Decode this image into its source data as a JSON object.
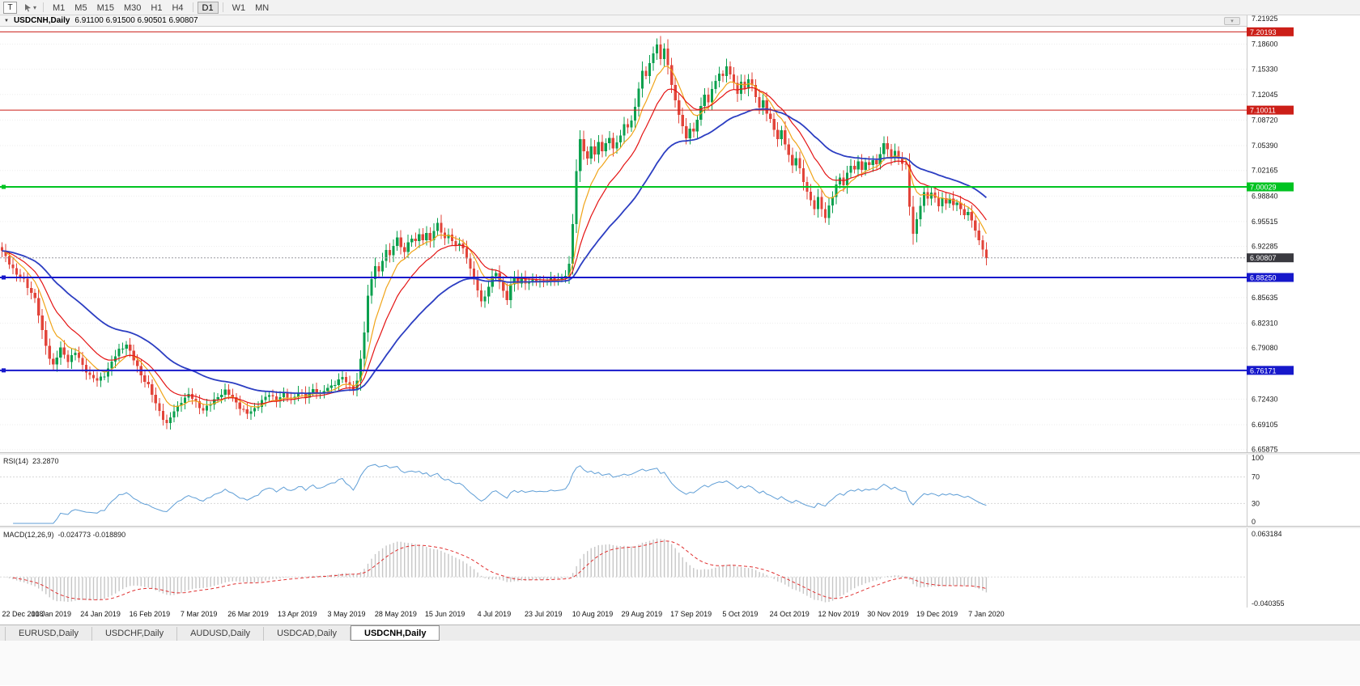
{
  "toolbar": {
    "tool_label": "T",
    "timeframes": [
      "M1",
      "M5",
      "M15",
      "M30",
      "H1",
      "H4",
      "D1",
      "W1",
      "MN"
    ],
    "active_timeframe": "D1"
  },
  "icons": {
    "caret_glyph": "▾",
    "scroll_glyph": "▾"
  },
  "header": {
    "collapse_glyph": "▼",
    "symbol": "USDCNH,Daily",
    "ohlc": "6.91100 6.91500 6.90501 6.90807"
  },
  "indicators": {
    "rsi_name": "RSI(14)",
    "rsi_value": "23.2870",
    "macd_name": "MACD(12,26,9)",
    "macd_values": "-0.024773 -0.018890"
  },
  "tabs": {
    "items": [
      "EURUSD,Daily",
      "USDCHF,Daily",
      "AUDUSD,Daily",
      "USDCAD,Daily",
      "USDCNH,Daily"
    ],
    "active_index": 4
  },
  "chart_data": {
    "type": "candlestick",
    "symbol": "USDCNH",
    "timeframe": "Daily",
    "current_bar": {
      "open": 6.911,
      "high": 6.915,
      "low": 6.90501,
      "close": 6.90807
    },
    "bars": 270,
    "bull_color": "#0aa04e",
    "bear_color": "#e2443a",
    "price_scale": {
      "top": 7.2233,
      "bottom": 6.6553,
      "ticks": [
        "7.21925",
        "7.18600",
        "7.15330",
        "7.12045",
        "7.08720",
        "7.05390",
        "7.02165",
        "6.98840",
        "6.95515",
        "6.92285",
        "6.85635",
        "6.82310",
        "6.79080",
        "6.72430",
        "6.69105",
        "6.65875"
      ]
    },
    "x_labels": [
      "22 Dec 2018",
      "10 Jan 2019",
      "24 Jan 2019",
      "16 Feb 2019",
      "7 Mar 2019",
      "26 Mar 2019",
      "13 Apr 2019",
      "3 May 2019",
      "28 May 2019",
      "15 Jun 2019",
      "4 Jul 2019",
      "23 Jul 2019",
      "10 Aug 2019",
      "29 Aug 2019",
      "17 Sep 2019",
      "5 Oct 2019",
      "24 Oct 2019",
      "12 Nov 2019",
      "30 Nov 2019",
      "19 Dec 2019",
      "7 Jan 2020"
    ],
    "horizontal_lines": [
      {
        "price": 7.20193,
        "label": "7.20193",
        "color": "#cc1f18",
        "width": 1,
        "handles": false
      },
      {
        "price": 7.10011,
        "label": "7.10011",
        "color": "#cc1f18",
        "width": 1,
        "handles": false
      },
      {
        "price": 7.00029,
        "label": "7.00029",
        "color": "#00c321",
        "width": 2,
        "handles": true
      },
      {
        "price": 6.8825,
        "label": "6.88250",
        "color": "#1618cb",
        "width": 2,
        "handles": true
      },
      {
        "price": 6.76171,
        "label": "6.76171",
        "color": "#1618cb",
        "width": 2,
        "handles": true
      }
    ],
    "last_price": {
      "price": 6.90807,
      "label": "6.90807",
      "badge_color": "#3a3a40",
      "line_color": "#9a9aa0"
    },
    "moving_averages": [
      {
        "method": "ema",
        "period": 8,
        "color": "#f0a418",
        "width": 1.2
      },
      {
        "method": "ema",
        "period": 16,
        "color": "#e41414",
        "width": 1.2
      },
      {
        "method": "ema",
        "period": 40,
        "color": "#2c3ec2",
        "width": 1.8
      }
    ],
    "indicators": {
      "rsi": {
        "period": 14,
        "current": 23.287,
        "color": "#5f9ed6",
        "ticks": [
          "100",
          "70",
          "30",
          "0"
        ],
        "guides": [
          70,
          30
        ]
      },
      "macd": {
        "fast": 12,
        "slow": 26,
        "signal_period": 9,
        "current_macd": -0.024773,
        "current_signal": -0.01889,
        "scale_top": 0.063184,
        "scale_bottom": -0.040355,
        "ticks": [
          "0.063184",
          "-0.040355"
        ],
        "histogram_color": "#c6c6c6",
        "signal_color": "#e03030"
      }
    },
    "close_path": [
      [
        0,
        6.916
      ],
      [
        2,
        6.902
      ],
      [
        4,
        6.886
      ],
      [
        6,
        6.879
      ],
      [
        9,
        6.855
      ],
      [
        11,
        6.812
      ],
      [
        13,
        6.778
      ],
      [
        14,
        6.768
      ],
      [
        16,
        6.79
      ],
      [
        18,
        6.775
      ],
      [
        20,
        6.785
      ],
      [
        22,
        6.768
      ],
      [
        24,
        6.755
      ],
      [
        26,
        6.748
      ],
      [
        28,
        6.756
      ],
      [
        30,
        6.772
      ],
      [
        32,
        6.788
      ],
      [
        34,
        6.796
      ],
      [
        36,
        6.775
      ],
      [
        38,
        6.756
      ],
      [
        40,
        6.742
      ],
      [
        42,
        6.718
      ],
      [
        44,
        6.7
      ],
      [
        45,
        6.692
      ],
      [
        47,
        6.708
      ],
      [
        49,
        6.722
      ],
      [
        51,
        6.73
      ],
      [
        53,
        6.72
      ],
      [
        55,
        6.71
      ],
      [
        57,
        6.718
      ],
      [
        59,
        6.728
      ],
      [
        61,
        6.735
      ],
      [
        63,
        6.726
      ],
      [
        65,
        6.714
      ],
      [
        67,
        6.705
      ],
      [
        69,
        6.712
      ],
      [
        71,
        6.722
      ],
      [
        73,
        6.73
      ],
      [
        75,
        6.724
      ],
      [
        77,
        6.73
      ],
      [
        79,
        6.724
      ],
      [
        81,
        6.734
      ],
      [
        83,
        6.727
      ],
      [
        85,
        6.738
      ],
      [
        87,
        6.73
      ],
      [
        89,
        6.739
      ],
      [
        91,
        6.745
      ],
      [
        93,
        6.752
      ],
      [
        95,
        6.742
      ],
      [
        96,
        6.738
      ],
      [
        97,
        6.748
      ],
      [
        98,
        6.775
      ],
      [
        99,
        6.812
      ],
      [
        100,
        6.858
      ],
      [
        101,
        6.882
      ],
      [
        102,
        6.898
      ],
      [
        103,
        6.888
      ],
      [
        104,
        6.905
      ],
      [
        105,
        6.918
      ],
      [
        106,
        6.912
      ],
      [
        107,
        6.925
      ],
      [
        108,
        6.932
      ],
      [
        109,
        6.922
      ],
      [
        110,
        6.916
      ],
      [
        111,
        6.928
      ],
      [
        112,
        6.935
      ],
      [
        113,
        6.928
      ],
      [
        114,
        6.938
      ],
      [
        115,
        6.932
      ],
      [
        116,
        6.94
      ],
      [
        117,
        6.933
      ],
      [
        118,
        6.942
      ],
      [
        119,
        6.952
      ],
      [
        120,
        6.942
      ],
      [
        121,
        6.933
      ],
      [
        122,
        6.94
      ],
      [
        123,
        6.93
      ],
      [
        124,
        6.922
      ],
      [
        125,
        6.928
      ],
      [
        126,
        6.92
      ],
      [
        127,
        6.908
      ],
      [
        128,
        6.895
      ],
      [
        129,
        6.88
      ],
      [
        130,
        6.866
      ],
      [
        131,
        6.852
      ],
      [
        132,
        6.858
      ],
      [
        133,
        6.872
      ],
      [
        134,
        6.882
      ],
      [
        135,
        6.888
      ],
      [
        136,
        6.878
      ],
      [
        137,
        6.865
      ],
      [
        138,
        6.855
      ],
      [
        139,
        6.872
      ],
      [
        140,
        6.882
      ],
      [
        141,
        6.876
      ],
      [
        142,
        6.882
      ],
      [
        143,
        6.876
      ],
      [
        145,
        6.878
      ],
      [
        147,
        6.878
      ],
      [
        149,
        6.878
      ],
      [
        151,
        6.88
      ],
      [
        153,
        6.882
      ],
      [
        154,
        6.886
      ],
      [
        155,
        6.898
      ],
      [
        156,
        6.952
      ],
      [
        157,
        7.022
      ],
      [
        158,
        7.062
      ],
      [
        159,
        7.048
      ],
      [
        160,
        7.035
      ],
      [
        161,
        7.052
      ],
      [
        162,
        7.044
      ],
      [
        163,
        7.058
      ],
      [
        164,
        7.048
      ],
      [
        165,
        7.056
      ],
      [
        166,
        7.062
      ],
      [
        167,
        7.052
      ],
      [
        168,
        7.058
      ],
      [
        169,
        7.068
      ],
      [
        170,
        7.082
      ],
      [
        171,
        7.075
      ],
      [
        172,
        7.088
      ],
      [
        173,
        7.105
      ],
      [
        174,
        7.128
      ],
      [
        175,
        7.152
      ],
      [
        176,
        7.142
      ],
      [
        177,
        7.162
      ],
      [
        178,
        7.175
      ],
      [
        179,
        7.185
      ],
      [
        180,
        7.168
      ],
      [
        181,
        7.178
      ],
      [
        182,
        7.158
      ],
      [
        183,
        7.135
      ],
      [
        184,
        7.112
      ],
      [
        185,
        7.095
      ],
      [
        186,
        7.078
      ],
      [
        187,
        7.062
      ],
      [
        188,
        7.078
      ],
      [
        189,
        7.072
      ],
      [
        190,
        7.088
      ],
      [
        191,
        7.105
      ],
      [
        192,
        7.118
      ],
      [
        193,
        7.112
      ],
      [
        194,
        7.128
      ],
      [
        195,
        7.138
      ],
      [
        196,
        7.148
      ],
      [
        197,
        7.142
      ],
      [
        198,
        7.158
      ],
      [
        199,
        7.148
      ],
      [
        200,
        7.135
      ],
      [
        201,
        7.122
      ],
      [
        202,
        7.135
      ],
      [
        203,
        7.128
      ],
      [
        204,
        7.142
      ],
      [
        205,
        7.132
      ],
      [
        206,
        7.118
      ],
      [
        207,
        7.102
      ],
      [
        208,
        7.112
      ],
      [
        209,
        7.098
      ],
      [
        210,
        7.088
      ],
      [
        211,
        7.075
      ],
      [
        212,
        7.062
      ],
      [
        213,
        7.072
      ],
      [
        214,
        7.058
      ],
      [
        215,
        7.042
      ],
      [
        216,
        7.028
      ],
      [
        217,
        7.038
      ],
      [
        218,
        7.022
      ],
      [
        219,
        7.008
      ],
      [
        220,
        6.995
      ],
      [
        221,
        6.982
      ],
      [
        222,
        6.972
      ],
      [
        223,
        6.985
      ],
      [
        224,
        6.972
      ],
      [
        225,
        6.962
      ],
      [
        226,
        6.975
      ],
      [
        227,
        6.988
      ],
      [
        228,
        7.002
      ],
      [
        229,
        7.012
      ],
      [
        230,
        7.005
      ],
      [
        231,
        7.018
      ],
      [
        232,
        7.028
      ],
      [
        233,
        7.022
      ],
      [
        234,
        7.032
      ],
      [
        235,
        7.025
      ],
      [
        236,
        7.032
      ],
      [
        237,
        7.028
      ],
      [
        238,
        7.035
      ],
      [
        239,
        7.028
      ],
      [
        240,
        7.045
      ],
      [
        241,
        7.058
      ],
      [
        242,
        7.048
      ],
      [
        243,
        7.038
      ],
      [
        244,
        7.045
      ],
      [
        245,
        7.038
      ],
      [
        246,
        7.032
      ],
      [
        247,
        7.028
      ],
      [
        248,
        6.975
      ],
      [
        249,
        6.938
      ],
      [
        250,
        6.958
      ],
      [
        251,
        6.978
      ],
      [
        252,
        6.992
      ],
      [
        253,
        6.985
      ],
      [
        254,
        6.992
      ],
      [
        255,
        6.985
      ],
      [
        256,
        6.978
      ],
      [
        257,
        6.985
      ],
      [
        258,
        6.978
      ],
      [
        259,
        6.985
      ],
      [
        260,
        6.975
      ],
      [
        261,
        6.982
      ],
      [
        262,
        6.972
      ],
      [
        263,
        6.962
      ],
      [
        264,
        6.968
      ],
      [
        265,
        6.955
      ],
      [
        266,
        6.945
      ],
      [
        267,
        6.932
      ],
      [
        268,
        6.918
      ],
      [
        269,
        6.908
      ]
    ]
  }
}
